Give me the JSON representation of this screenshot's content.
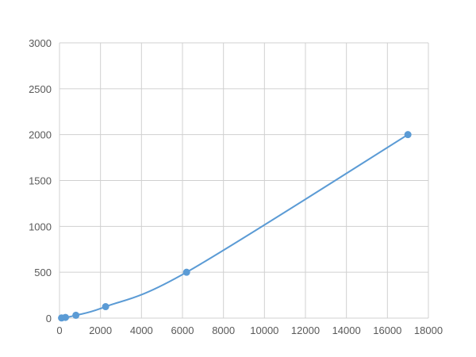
{
  "chart_data": {
    "type": "line",
    "title": "",
    "xlabel": "",
    "ylabel": "",
    "xlim": [
      0,
      18000
    ],
    "ylim": [
      0,
      3000
    ],
    "xticks": [
      0,
      2000,
      4000,
      6000,
      8000,
      10000,
      12000,
      14000,
      16000,
      18000
    ],
    "yticks": [
      0,
      500,
      1000,
      1500,
      2000,
      2500,
      3000
    ],
    "grid": true,
    "smooth": true,
    "color": "#5b9bd5",
    "series": [
      {
        "x": [
          100,
          290,
          800,
          2250,
          6200,
          17000
        ],
        "y": [
          2,
          8,
          31,
          125,
          500,
          2000
        ]
      }
    ]
  }
}
